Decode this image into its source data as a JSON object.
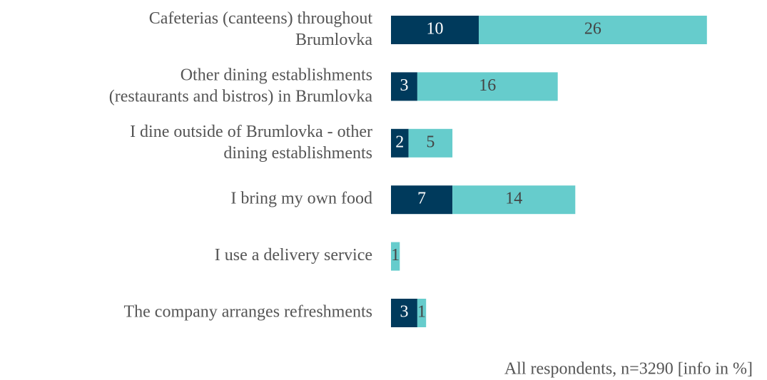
{
  "chart_data": {
    "type": "stacked-bar-horizontal",
    "categories": [
      "Cafeterias (canteens) throughout\nBrumlovka",
      "Other dining establishments\n(restaurants and bistros) in Brumlovka",
      "I dine outside of Brumlovka - other\ndining establishments",
      "I bring my own food",
      "I use a delivery service",
      "The company arranges refreshments"
    ],
    "series": [
      {
        "color": "#003a5c",
        "label_color": "#ffffff",
        "values": [
          10,
          3,
          2,
          7,
          null,
          3
        ]
      },
      {
        "color": "#66cccc",
        "label_color": "#444444",
        "values": [
          26,
          16,
          5,
          14,
          1,
          1
        ]
      }
    ],
    "footnote": "All respondents, n=3290 [info in %]"
  }
}
